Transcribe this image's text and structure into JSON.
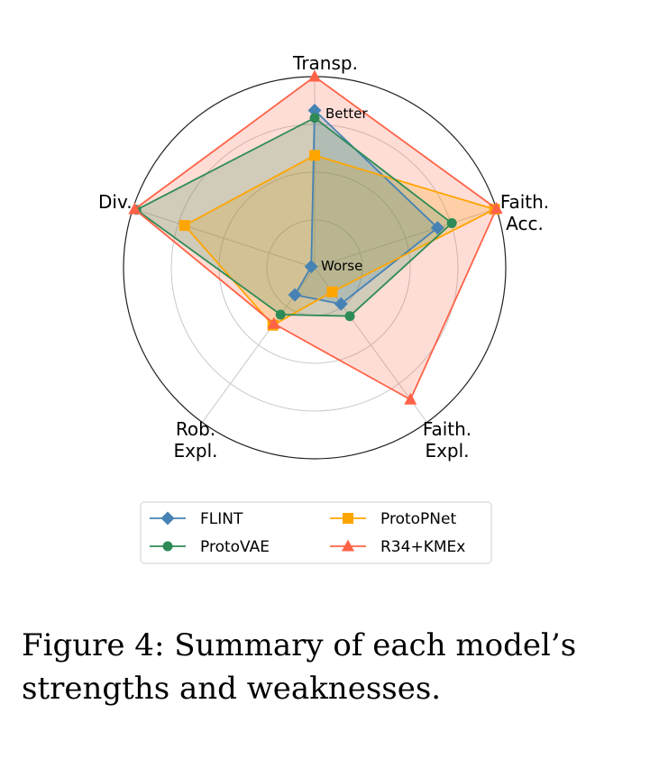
{
  "chart_data": {
    "type": "radar",
    "axes": [
      "Transp.",
      "Faith. Acc.",
      "Faith. Expl.",
      "Rob. Expl.",
      "Div."
    ],
    "axis_label_lines": [
      [
        "Transp."
      ],
      [
        "Faith.",
        "Acc."
      ],
      [
        "Faith.",
        "Expl."
      ],
      [
        "Rob.",
        "Expl."
      ],
      [
        "Div."
      ]
    ],
    "range": [
      0,
      1
    ],
    "grid": true,
    "annotations": {
      "better": "Better",
      "worse": "Worse"
    },
    "legend": {
      "placement": "bottom",
      "columns": 2
    },
    "series": [
      {
        "name": "FLINT",
        "marker": "diamond",
        "color": "#4682b4",
        "values": [
          0.82,
          0.67,
          0.22,
          0.16,
          0.0
        ]
      },
      {
        "name": "ProtoPNet",
        "marker": "square",
        "color": "#ffa500",
        "values": [
          0.58,
          0.99,
          0.14,
          0.36,
          0.71
        ]
      },
      {
        "name": "ProtoVAE",
        "marker": "circle",
        "color": "#2e8b57",
        "values": [
          0.78,
          0.75,
          0.3,
          0.29,
          0.98
        ]
      },
      {
        "name": "R34+KMEx",
        "marker": "triangle",
        "color": "#ff6347",
        "values": [
          1.0,
          1.0,
          0.85,
          0.35,
          0.99
        ]
      }
    ]
  },
  "caption": "Figure 4: Summary of each model’s strengths and weaknesses."
}
